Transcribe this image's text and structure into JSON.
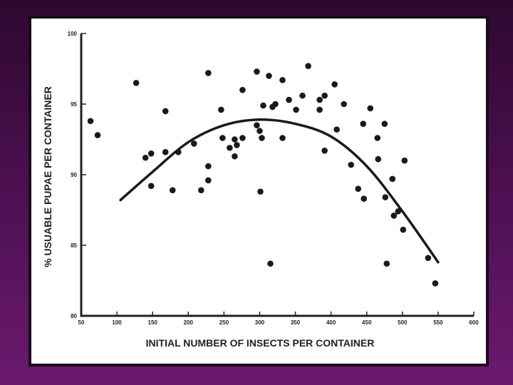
{
  "chart_data": {
    "type": "scatter",
    "xlabel": "INITIAL NUMBER OF INSECTS PER CONTAINER",
    "ylabel": "% USUABLE PUPAE PER CONTAINER",
    "xlim": [
      50,
      600
    ],
    "ylim": [
      80,
      100
    ],
    "x_ticks": [
      "50",
      "100",
      "150",
      "200",
      "250",
      "300",
      "350",
      "400",
      "450",
      "500",
      "550",
      "600"
    ],
    "y_ticks": [
      "80",
      "85",
      "90",
      "95",
      "100"
    ],
    "grid": false,
    "points": [
      {
        "x": 63,
        "y": 93.8
      },
      {
        "x": 73,
        "y": 92.8
      },
      {
        "x": 127,
        "y": 96.5
      },
      {
        "x": 140,
        "y": 91.2
      },
      {
        "x": 148,
        "y": 91.5
      },
      {
        "x": 148,
        "y": 89.2
      },
      {
        "x": 168,
        "y": 94.5
      },
      {
        "x": 168,
        "y": 91.6
      },
      {
        "x": 178,
        "y": 88.9
      },
      {
        "x": 186,
        "y": 91.6
      },
      {
        "x": 208,
        "y": 92.2
      },
      {
        "x": 218,
        "y": 88.9
      },
      {
        "x": 228,
        "y": 97.2
      },
      {
        "x": 228,
        "y": 90.6
      },
      {
        "x": 228,
        "y": 89.6
      },
      {
        "x": 246,
        "y": 94.6
      },
      {
        "x": 248,
        "y": 92.6
      },
      {
        "x": 258,
        "y": 91.9
      },
      {
        "x": 265,
        "y": 91.3
      },
      {
        "x": 265,
        "y": 92.5
      },
      {
        "x": 268,
        "y": 92.1
      },
      {
        "x": 276,
        "y": 92.6
      },
      {
        "x": 276,
        "y": 96.0
      },
      {
        "x": 296,
        "y": 97.3
      },
      {
        "x": 296,
        "y": 93.5
      },
      {
        "x": 300,
        "y": 93.1
      },
      {
        "x": 301,
        "y": 88.8
      },
      {
        "x": 303,
        "y": 92.6
      },
      {
        "x": 305,
        "y": 94.9
      },
      {
        "x": 313,
        "y": 97.0
      },
      {
        "x": 315,
        "y": 83.7
      },
      {
        "x": 318,
        "y": 94.8
      },
      {
        "x": 322,
        "y": 95.0
      },
      {
        "x": 332,
        "y": 96.7
      },
      {
        "x": 332,
        "y": 92.6
      },
      {
        "x": 341,
        "y": 95.3
      },
      {
        "x": 351,
        "y": 94.6
      },
      {
        "x": 360,
        "y": 95.6
      },
      {
        "x": 368,
        "y": 97.7
      },
      {
        "x": 384,
        "y": 95.3
      },
      {
        "x": 384,
        "y": 94.6
      },
      {
        "x": 391,
        "y": 91.7
      },
      {
        "x": 391,
        "y": 95.6
      },
      {
        "x": 405,
        "y": 96.4
      },
      {
        "x": 408,
        "y": 93.2
      },
      {
        "x": 418,
        "y": 95.0
      },
      {
        "x": 428,
        "y": 90.7
      },
      {
        "x": 438,
        "y": 89.0
      },
      {
        "x": 445,
        "y": 93.6
      },
      {
        "x": 446,
        "y": 88.3
      },
      {
        "x": 455,
        "y": 94.7
      },
      {
        "x": 465,
        "y": 92.6
      },
      {
        "x": 466,
        "y": 91.1
      },
      {
        "x": 475,
        "y": 93.6
      },
      {
        "x": 476,
        "y": 88.4
      },
      {
        "x": 478,
        "y": 83.7
      },
      {
        "x": 486,
        "y": 89.7
      },
      {
        "x": 488,
        "y": 87.1
      },
      {
        "x": 494,
        "y": 87.4
      },
      {
        "x": 501,
        "y": 86.1
      },
      {
        "x": 503,
        "y": 91.0
      },
      {
        "x": 536,
        "y": 84.1
      },
      {
        "x": 546,
        "y": 82.3
      }
    ],
    "curve": [
      {
        "x": 105,
        "y": 88.2
      },
      {
        "x": 150,
        "y": 90.2
      },
      {
        "x": 200,
        "y": 92.3
      },
      {
        "x": 250,
        "y": 93.5
      },
      {
        "x": 300,
        "y": 93.9
      },
      {
        "x": 350,
        "y": 93.6
      },
      {
        "x": 400,
        "y": 92.7
      },
      {
        "x": 450,
        "y": 90.6
      },
      {
        "x": 500,
        "y": 87.4
      },
      {
        "x": 550,
        "y": 83.8
      }
    ]
  }
}
